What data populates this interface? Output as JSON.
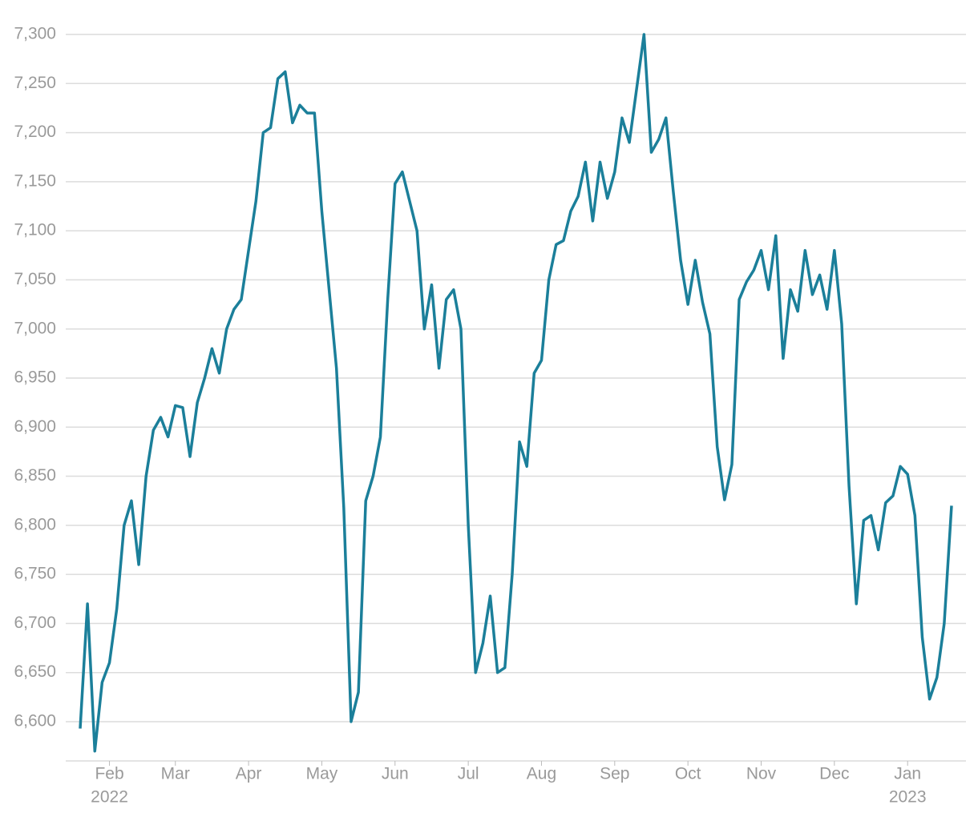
{
  "chart_data": {
    "type": "line",
    "x": [
      "2022-01",
      "2022-01",
      "2022-01",
      "2022-01",
      "2022-02",
      "2022-02",
      "2022-02",
      "2022-02",
      "2022-02",
      "2022-02",
      "2022-02",
      "2022-02",
      "2022-02",
      "2022-03",
      "2022-03",
      "2022-03",
      "2022-03",
      "2022-03",
      "2022-03",
      "2022-03",
      "2022-03",
      "2022-03",
      "2022-03",
      "2022-04",
      "2022-04",
      "2022-04",
      "2022-04",
      "2022-04",
      "2022-04",
      "2022-04",
      "2022-04",
      "2022-04",
      "2022-04",
      "2022-05",
      "2022-05",
      "2022-05",
      "2022-05",
      "2022-05",
      "2022-05",
      "2022-05",
      "2022-05",
      "2022-05",
      "2022-05",
      "2022-06",
      "2022-06",
      "2022-06",
      "2022-06",
      "2022-06",
      "2022-06",
      "2022-06",
      "2022-06",
      "2022-06",
      "2022-06",
      "2022-07",
      "2022-07",
      "2022-07",
      "2022-07",
      "2022-07",
      "2022-07",
      "2022-07",
      "2022-07",
      "2022-07",
      "2022-07",
      "2022-08",
      "2022-08",
      "2022-08",
      "2022-08",
      "2022-08",
      "2022-08",
      "2022-08",
      "2022-08",
      "2022-08",
      "2022-08",
      "2022-09",
      "2022-09",
      "2022-09",
      "2022-09",
      "2022-09",
      "2022-09",
      "2022-09",
      "2022-09",
      "2022-09",
      "2022-09",
      "2022-10",
      "2022-10",
      "2022-10",
      "2022-10",
      "2022-10",
      "2022-10",
      "2022-10",
      "2022-10",
      "2022-10",
      "2022-10",
      "2022-11",
      "2022-11",
      "2022-11",
      "2022-11",
      "2022-11",
      "2022-11",
      "2022-11",
      "2022-11",
      "2022-11",
      "2022-11",
      "2022-12",
      "2022-12",
      "2022-12",
      "2022-12",
      "2022-12",
      "2022-12",
      "2022-12",
      "2022-12",
      "2022-12",
      "2022-12",
      "2023-01",
      "2023-01",
      "2023-01",
      "2023-01",
      "2023-01",
      "2023-01",
      "2023-01"
    ],
    "series": [
      {
        "color": "#1b7f9a",
        "values": [
          6593,
          6720,
          6570,
          6640,
          6660,
          6715,
          6800,
          6825,
          6760,
          6850,
          6897,
          6910,
          6890,
          6922,
          6920,
          6870,
          6925,
          6950,
          6980,
          6955,
          7000,
          7020,
          7030,
          7080,
          7130,
          7200,
          7205,
          7255,
          7262,
          7210,
          7228,
          7220,
          7220,
          7120,
          7040,
          6960,
          6818,
          6600,
          6630,
          6825,
          6850,
          6890,
          7030,
          7148,
          7160,
          7130,
          7100,
          7000,
          7045,
          6960,
          7030,
          7040,
          7000,
          6800,
          6650,
          6680,
          6728,
          6650,
          6655,
          6750,
          6885,
          6860,
          6955,
          6968,
          7050,
          7086,
          7090,
          7120,
          7135,
          7170,
          7110,
          7170,
          7133,
          7160,
          7215,
          7190,
          7245,
          7300,
          7180,
          7193,
          7215,
          7140,
          7070,
          7025,
          7070,
          7027,
          6995,
          6880,
          6826,
          6862,
          7030,
          7048,
          7060,
          7080,
          7040,
          7095,
          6970,
          7040,
          7018,
          7080,
          7035,
          7055,
          7020,
          7080,
          7005,
          6840,
          6720,
          6805,
          6810,
          6775,
          6823,
          6830,
          6860,
          6852,
          6810,
          6686,
          6623,
          6645,
          6700,
          6820
        ]
      }
    ],
    "ylim": [
      6560,
      7320
    ],
    "yticks": [
      {
        "value": 6600,
        "label": "6,600"
      },
      {
        "value": 6650,
        "label": "6,650"
      },
      {
        "value": 6700,
        "label": "6,700"
      },
      {
        "value": 6750,
        "label": "6,750"
      },
      {
        "value": 6800,
        "label": "6,800"
      },
      {
        "value": 6850,
        "label": "6,850"
      },
      {
        "value": 6900,
        "label": "6,900"
      },
      {
        "value": 6950,
        "label": "6,950"
      },
      {
        "value": 7000,
        "label": "7,000"
      },
      {
        "value": 7050,
        "label": "7,050"
      },
      {
        "value": 7100,
        "label": "7,100"
      },
      {
        "value": 7150,
        "label": "7,150"
      },
      {
        "value": 7200,
        "label": "7,200"
      },
      {
        "value": 7250,
        "label": "7,250"
      },
      {
        "value": 7300,
        "label": "7,300"
      }
    ],
    "xticks": [
      {
        "value": "2022-02",
        "label": "Feb"
      },
      {
        "value": "2022-03",
        "label": "Mar"
      },
      {
        "value": "2022-04",
        "label": "Apr"
      },
      {
        "value": "2022-05",
        "label": "May"
      },
      {
        "value": "2022-06",
        "label": "Jun"
      },
      {
        "value": "2022-07",
        "label": "Jul"
      },
      {
        "value": "2022-08",
        "label": "Aug"
      },
      {
        "value": "2022-09",
        "label": "Sep"
      },
      {
        "value": "2022-10",
        "label": "Oct"
      },
      {
        "value": "2022-11",
        "label": "Nov"
      },
      {
        "value": "2022-12",
        "label": "Dec"
      },
      {
        "value": "2023-01",
        "label": "Jan"
      }
    ],
    "year_labels": [
      {
        "value": "2022-02",
        "label": "2022"
      },
      {
        "value": "2023-01",
        "label": "2023"
      }
    ],
    "grid": true
  }
}
